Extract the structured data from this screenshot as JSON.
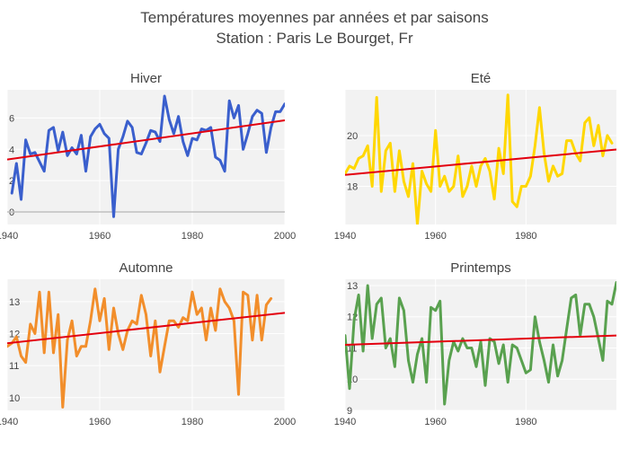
{
  "figure": {
    "title_line1": "Températures moyennes par années et par saisons",
    "title_line2": "Station : Paris Le Bourget, Fr"
  },
  "colors": {
    "background_panel": "#f2f2f2",
    "trend": "#e3000f",
    "text": "#444444"
  },
  "chart_data": [
    {
      "type": "line",
      "title": "Hiver",
      "color": "#3a5fcd",
      "x_start": 1941,
      "values": [
        1.2,
        3.1,
        0.8,
        4.6,
        3.7,
        3.8,
        3.2,
        2.6,
        5.2,
        5.4,
        3.9,
        5.1,
        3.6,
        4.1,
        3.7,
        4.9,
        2.6,
        4.8,
        5.3,
        5.6,
        5.0,
        4.7,
        -0.3,
        4.0,
        4.8,
        5.8,
        5.4,
        3.8,
        3.7,
        4.4,
        5.2,
        5.1,
        4.5,
        7.4,
        5.9,
        5.0,
        6.1,
        4.5,
        3.6,
        4.7,
        4.6,
        5.3,
        5.2,
        5.4,
        3.5,
        3.3,
        2.6,
        7.1,
        6.0,
        6.8,
        4.0,
        5.0,
        6.1,
        6.5,
        6.3,
        3.8,
        5.4,
        6.4,
        6.4,
        6.9
      ],
      "trend": [
        3.35,
        5.85
      ],
      "xlim": [
        1940,
        2000
      ],
      "ylim": [
        -0.8,
        7.8
      ],
      "y_ticks": [
        0,
        2,
        4,
        6
      ],
      "x_ticks": [
        1940,
        1960,
        1980,
        2000
      ],
      "zeroline": true
    },
    {
      "type": "line",
      "title": "Eté",
      "color": "#ffd700",
      "x_start": 1940,
      "values": [
        18.5,
        18.8,
        18.7,
        19.1,
        19.2,
        19.6,
        18.0,
        21.5,
        17.8,
        19.4,
        19.7,
        17.8,
        19.4,
        18.2,
        17.6,
        18.9,
        16.5,
        18.6,
        18.1,
        17.8,
        20.2,
        18.0,
        18.4,
        17.8,
        18.0,
        19.2,
        17.6,
        18.0,
        18.8,
        18.0,
        18.8,
        19.1,
        18.6,
        17.5,
        19.5,
        18.5,
        21.6,
        17.4,
        17.2,
        18.0,
        18.0,
        18.4,
        19.6,
        21.1,
        19.3,
        18.2,
        18.8,
        18.4,
        18.5,
        19.8,
        19.8,
        19.3,
        19.0,
        20.5,
        20.7,
        19.6,
        20.4,
        19.2,
        20.0,
        19.7
      ],
      "trend": [
        18.45,
        19.45
      ],
      "xlim": [
        1940,
        2000
      ],
      "ylim": [
        16.5,
        21.8
      ],
      "y_ticks": [
        18,
        20
      ],
      "x_ticks": [
        1940,
        1960,
        1980
      ],
      "zeroline": false
    },
    {
      "type": "line",
      "title": "Automne",
      "color": "#f28e2b",
      "x_start": 1940,
      "values": [
        11.6,
        11.7,
        11.9,
        11.3,
        11.1,
        12.3,
        12.0,
        13.3,
        11.4,
        13.3,
        11.4,
        12.6,
        9.7,
        11.8,
        12.4,
        11.3,
        11.6,
        11.6,
        12.4,
        13.4,
        12.4,
        13.1,
        11.5,
        12.8,
        12.0,
        11.5,
        12.1,
        12.4,
        12.3,
        13.2,
        12.6,
        11.3,
        12.4,
        10.8,
        11.6,
        12.4,
        12.4,
        12.2,
        12.5,
        12.4,
        13.3,
        12.6,
        12.8,
        11.8,
        12.8,
        12.1,
        13.4,
        13.0,
        12.8,
        12.4,
        10.1,
        13.3,
        13.2,
        11.8,
        13.2,
        11.8,
        12.9,
        13.1
      ],
      "trend": [
        11.7,
        12.65
      ],
      "xlim": [
        1940,
        2000
      ],
      "ylim": [
        9.6,
        13.7
      ],
      "y_ticks": [
        10,
        11,
        12,
        13
      ],
      "x_ticks": [
        1940,
        1960,
        1980,
        2000
      ],
      "zeroline": false
    },
    {
      "type": "line",
      "title": "Printemps",
      "color": "#59a14f",
      "x_start": 1940,
      "values": [
        11.4,
        9.7,
        11.9,
        12.7,
        10.9,
        13.0,
        11.3,
        12.4,
        12.6,
        11.0,
        11.3,
        10.4,
        12.6,
        12.2,
        10.6,
        9.9,
        10.8,
        11.3,
        9.9,
        12.3,
        12.2,
        12.5,
        9.2,
        10.6,
        11.2,
        10.9,
        11.3,
        11.0,
        11.0,
        10.4,
        11.2,
        9.8,
        11.3,
        11.2,
        10.5,
        11.1,
        9.9,
        11.1,
        11.0,
        10.6,
        10.2,
        10.3,
        12.0,
        11.2,
        10.6,
        9.9,
        11.1,
        10.1,
        10.6,
        11.6,
        12.6,
        12.7,
        11.4,
        12.4,
        12.4,
        12.0,
        11.3,
        10.6,
        12.5,
        12.4,
        13.1,
        12.5
      ],
      "trend": [
        11.1,
        11.4
      ],
      "xlim": [
        1940,
        2000
      ],
      "ylim": [
        9,
        13.2
      ],
      "y_ticks": [
        9,
        10,
        11,
        12,
        13
      ],
      "x_ticks": [
        1940,
        1960,
        1980
      ],
      "zeroline": false
    }
  ]
}
